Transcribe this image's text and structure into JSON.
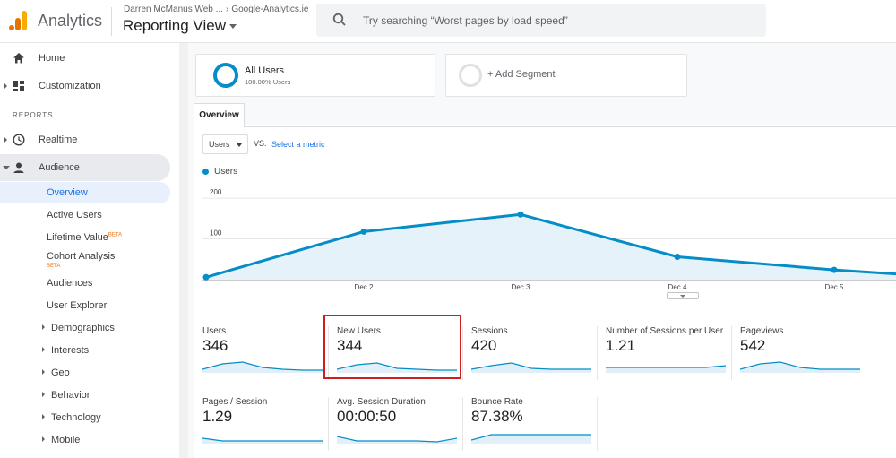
{
  "header": {
    "app_name": "Analytics",
    "account": "Darren McManus Web ...",
    "property": "Google-Analytics.ie",
    "view": "Reporting View",
    "search_placeholder": "Try searching “Worst pages by load speed”",
    "logo_icon": "analytics-logo-icon",
    "brand_colors": [
      "#f9ab00",
      "#e37400"
    ]
  },
  "sidebar": {
    "home": "Home",
    "customization": "Customization",
    "reports_label": "REPORTS",
    "realtime": "Realtime",
    "audience": "Audience",
    "audience_items": [
      {
        "label": "Overview",
        "active": true
      },
      {
        "label": "Active Users"
      },
      {
        "label": "Lifetime Value",
        "badge": "BETA"
      },
      {
        "label": "Cohort Analysis",
        "badge": "BETA"
      },
      {
        "label": "Audiences"
      },
      {
        "label": "User Explorer"
      },
      {
        "label": "Demographics",
        "expandable": true
      },
      {
        "label": "Interests",
        "expandable": true
      },
      {
        "label": "Geo",
        "expandable": true
      },
      {
        "label": "Behavior",
        "expandable": true
      },
      {
        "label": "Technology",
        "expandable": true
      },
      {
        "label": "Mobile",
        "expandable": true
      }
    ]
  },
  "segments": {
    "all_users": {
      "title": "All Users",
      "subtitle": "100.00% Users"
    },
    "add_segment": "+ Add Segment"
  },
  "report": {
    "tab": "Overview",
    "metric": "Users",
    "vs": "VS.",
    "select_metric": "Select a metric",
    "accent": "#058dc7",
    "highlight_color": "#cc1f1f"
  },
  "chart_data": {
    "type": "area",
    "series": [
      {
        "name": "Users",
        "values": [
          6,
          118,
          160,
          56,
          24,
          14
        ]
      }
    ],
    "x": [
      "",
      "Dec 2",
      "Dec 3",
      "Dec 4",
      "Dec 5",
      ""
    ],
    "x_tick_labels": [
      "Dec 2",
      "Dec 3",
      "Dec 4",
      "Dec 5"
    ],
    "y_tick_labels": [
      "100",
      "200"
    ],
    "ylim": [
      0,
      220
    ],
    "grid": true
  },
  "metrics": [
    {
      "label": "Users",
      "value": "346"
    },
    {
      "label": "New Users",
      "value": "344",
      "highlighted": true
    },
    {
      "label": "Sessions",
      "value": "420"
    },
    {
      "label": "Number of Sessions per User",
      "value": "1.21"
    },
    {
      "label": "Pageviews",
      "value": "542"
    },
    {
      "label": "Pages / Session",
      "value": "1.29"
    },
    {
      "label": "Avg. Session Duration",
      "value": "00:00:50"
    },
    {
      "label": "Bounce Rate",
      "value": "87.38%"
    }
  ]
}
